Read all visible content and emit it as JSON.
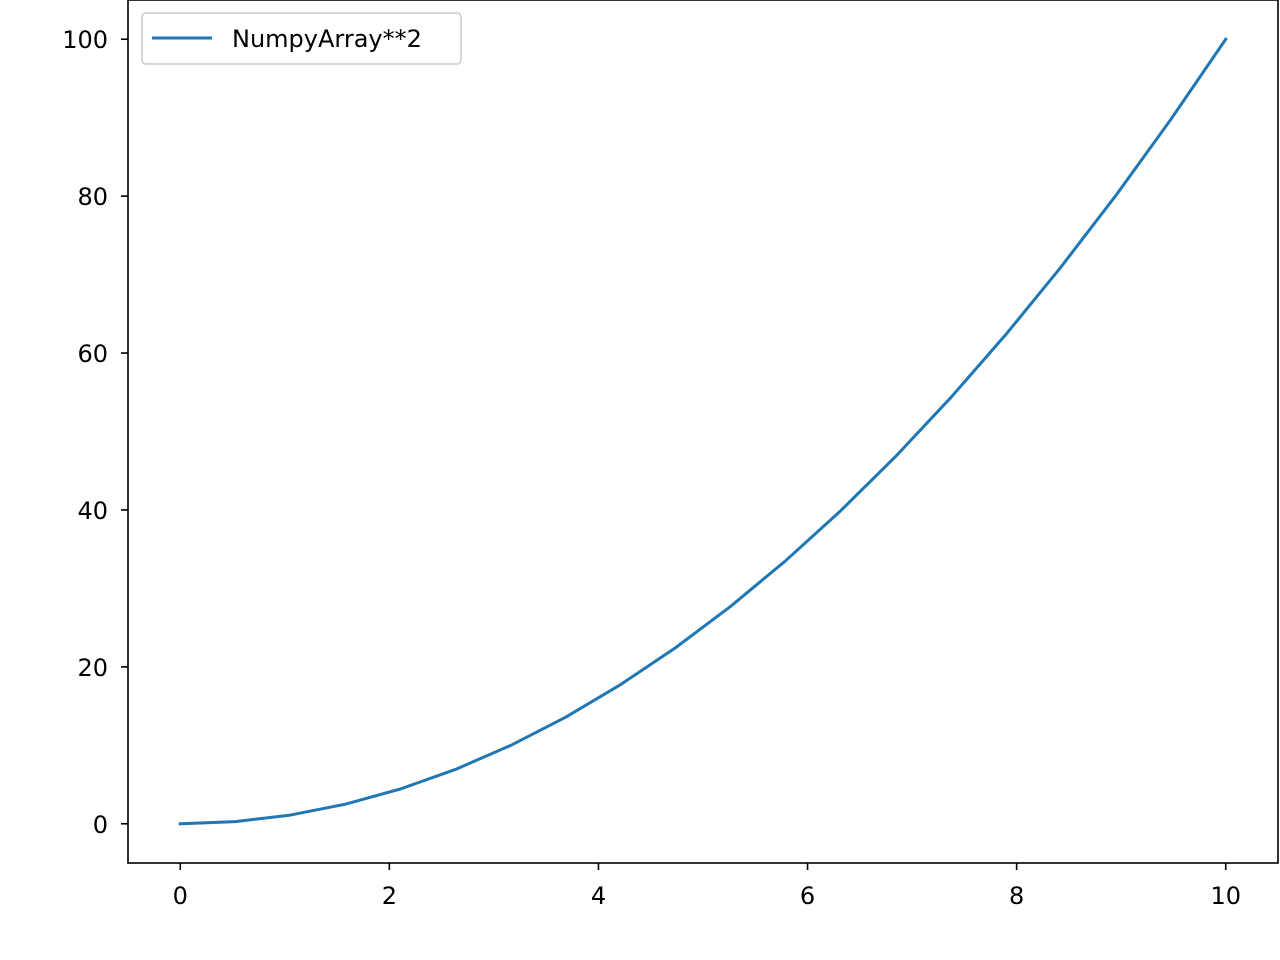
{
  "chart_data": {
    "type": "line",
    "title": "",
    "xlabel": "",
    "ylabel": "",
    "xlim": [
      -0.5,
      10.5
    ],
    "ylim": [
      -5,
      105
    ],
    "x_ticks": [
      0,
      2,
      4,
      6,
      8,
      10
    ],
    "y_ticks": [
      0,
      20,
      40,
      60,
      80,
      100
    ],
    "x_tick_labels": [
      "0",
      "2",
      "4",
      "6",
      "8",
      "10"
    ],
    "y_tick_labels": [
      "0",
      "20",
      "40",
      "60",
      "80",
      "100"
    ],
    "grid": false,
    "legend": {
      "placement": "upper-left",
      "entries": [
        "NumpyArray**2"
      ]
    },
    "series": [
      {
        "name": "NumpyArray**2",
        "color": "#1f77b4",
        "x": [
          0,
          0.5263,
          1.0526,
          1.5789,
          2.1053,
          2.6316,
          3.1579,
          3.6842,
          4.2105,
          4.7368,
          5.2632,
          5.7895,
          6.3158,
          6.8421,
          7.3684,
          7.8947,
          8.4211,
          8.9474,
          9.4737,
          10
        ],
        "y": [
          0,
          0.277,
          1.108,
          2.493,
          4.432,
          6.925,
          9.972,
          13.573,
          17.729,
          22.438,
          27.701,
          33.518,
          39.889,
          46.814,
          54.294,
          62.327,
          70.914,
          80.055,
          89.751,
          100
        ]
      }
    ]
  }
}
